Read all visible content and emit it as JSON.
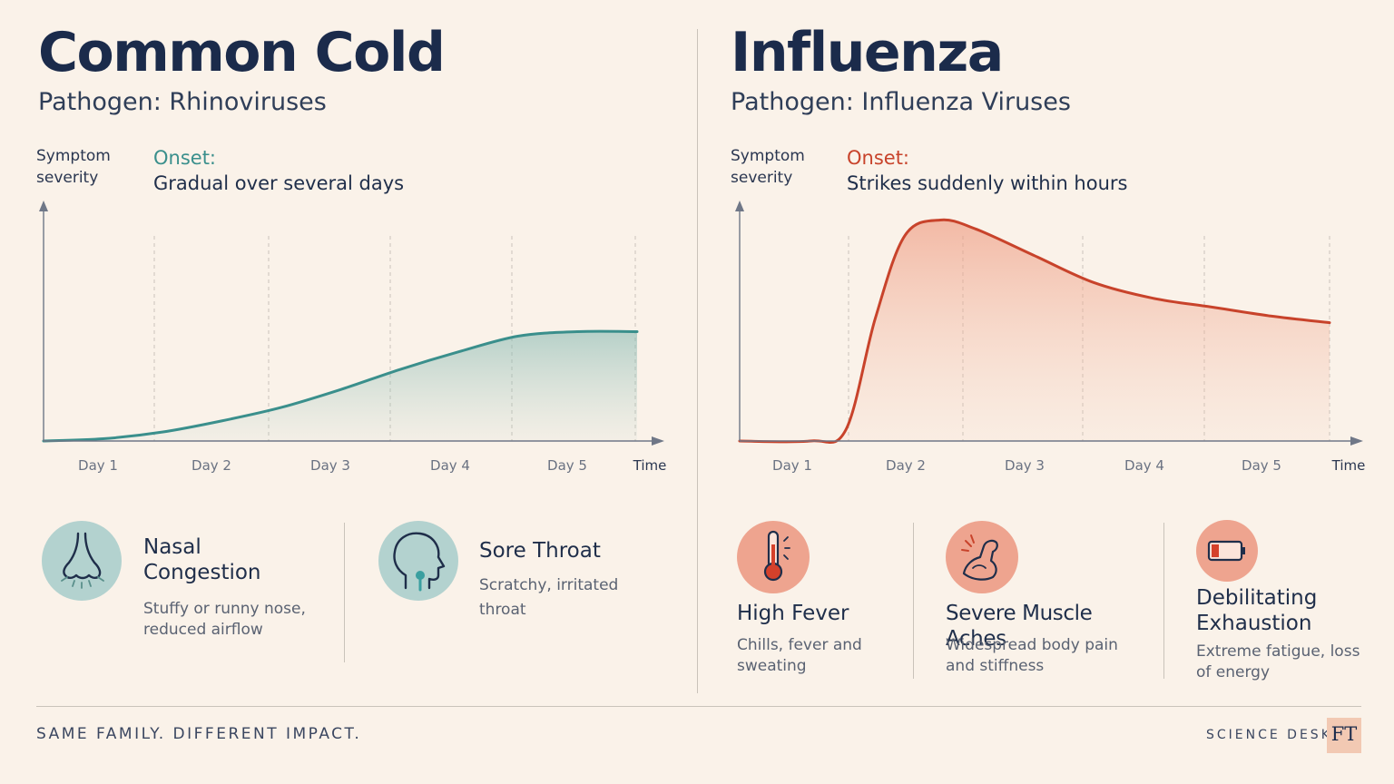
{
  "colors": {
    "background": "#faf2e9",
    "cold_accent": "#3a8f8c",
    "flu_accent": "#c8432b",
    "navy": "#1b2b4b"
  },
  "cold": {
    "title": "Common Cold",
    "pathogen": "Pathogen: Rhinoviruses",
    "onset_label": "Onset:",
    "onset_text": "Gradual over several days",
    "symptoms": [
      {
        "icon": "nose-icon",
        "title": "Nasal Congestion",
        "desc": "Stuffy or runny nose, reduced airflow"
      },
      {
        "icon": "throat-icon",
        "title": "Sore Throat",
        "desc": "Scratchy, irritated throat"
      }
    ]
  },
  "flu": {
    "title": "Influenza",
    "pathogen": "Pathogen: Influenza Viruses",
    "onset_label": "Onset:",
    "onset_text": "Strikes suddenly within hours",
    "symptoms": [
      {
        "icon": "thermometer-icon",
        "title": "High Fever",
        "desc": "Chills, fever and sweating"
      },
      {
        "icon": "flexed-arm-icon",
        "title": "Severe Muscle Aches",
        "desc": "Widespread body pain and stiffness"
      },
      {
        "icon": "low-battery-icon",
        "title": "Debilitating Exhaustion",
        "desc": "Extreme fatigue, loss of energy"
      }
    ]
  },
  "chart_data": [
    {
      "type": "area",
      "ylabel": "Symptom severity",
      "xlabel": "Time",
      "categories": [
        "Day 1",
        "Day 2",
        "Day 3",
        "Day 4",
        "Day 5"
      ],
      "x": [
        0,
        0.5,
        1,
        1.5,
        2,
        2.5,
        3,
        3.5,
        4,
        4.5,
        5
      ],
      "series": [
        {
          "values": [
            0,
            0.01,
            0.04,
            0.09,
            0.15,
            0.23,
            0.32,
            0.4,
            0.47,
            0.49,
            0.49
          ]
        }
      ],
      "ylim": [
        0,
        1
      ],
      "grid": "vertical dashed"
    },
    {
      "type": "area",
      "ylabel": "Symptom severity",
      "xlabel": "Time",
      "categories": [
        "Day 1",
        "Day 2",
        "Day 3",
        "Day 4",
        "Day 5"
      ],
      "x": [
        0,
        0.6,
        0.9,
        1.15,
        1.4,
        1.7,
        2.0,
        2.5,
        3.0,
        3.5,
        4.0,
        4.5,
        5.0
      ],
      "series": [
        {
          "values": [
            0,
            0,
            0.05,
            0.55,
            0.92,
            0.99,
            0.95,
            0.83,
            0.71,
            0.64,
            0.6,
            0.56,
            0.53
          ]
        }
      ],
      "ylim": [
        0,
        1
      ],
      "grid": "vertical dashed"
    }
  ],
  "footer": {
    "tagline": "SAME FAMILY. DIFFERENT IMPACT.",
    "desk": "SCIENCE DESK",
    "logo": "FT"
  }
}
